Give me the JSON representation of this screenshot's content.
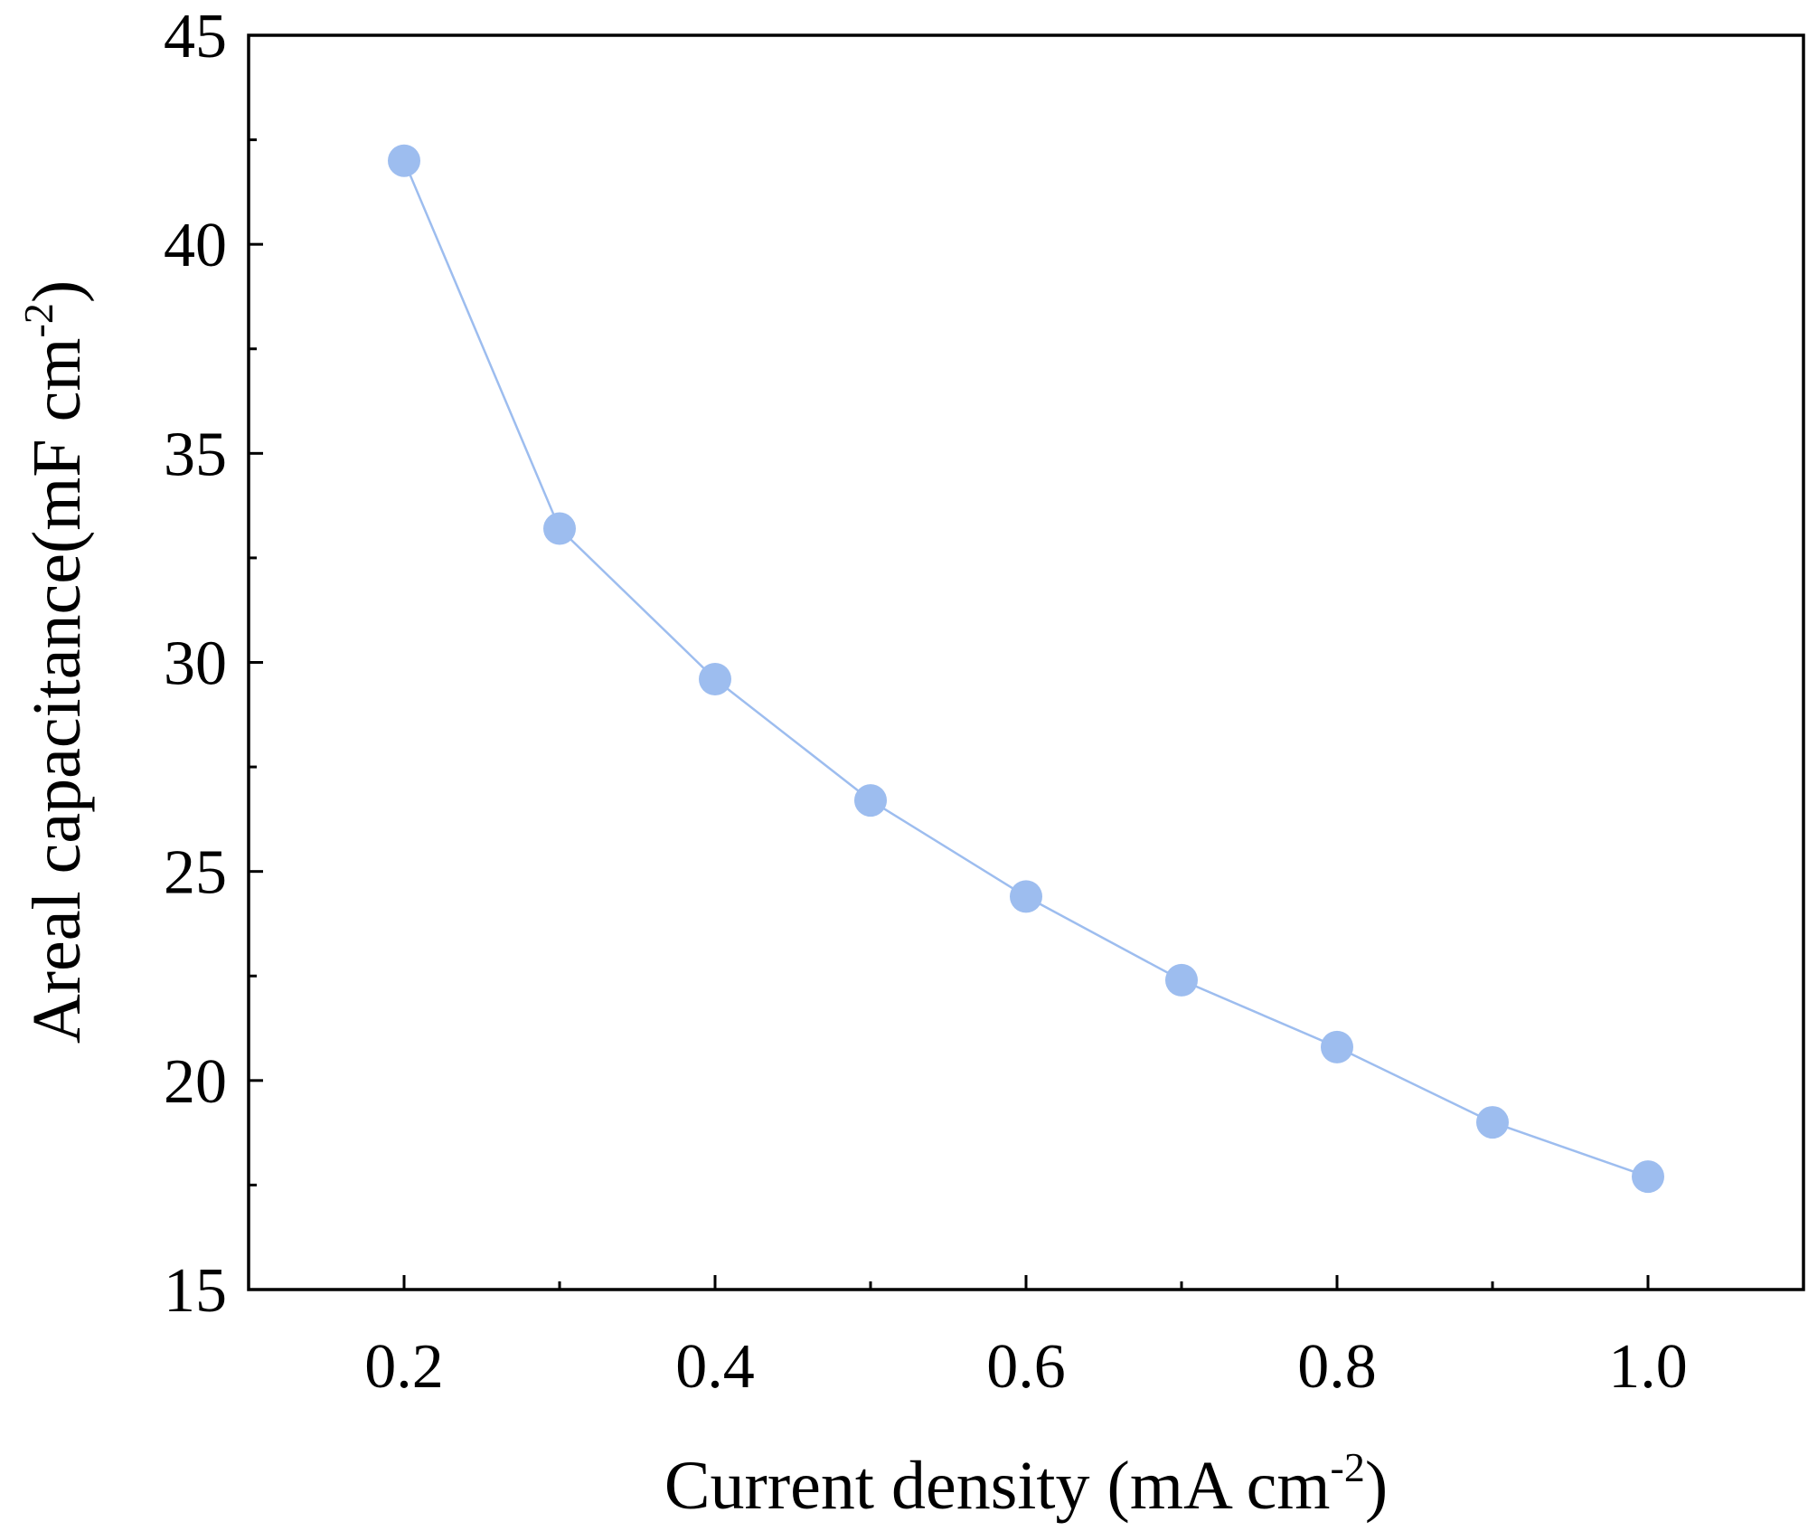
{
  "chart_data": {
    "type": "line",
    "title": "",
    "xlabel": {
      "text": "Current density (mA cm",
      "sup": "-2",
      "close": ")"
    },
    "ylabel": {
      "text": "Areal capacitance(mF cm",
      "sup": "-2",
      "close": ")"
    },
    "xlim": [
      0.1,
      1.1
    ],
    "ylim": [
      15,
      45
    ],
    "xticks": [
      0.2,
      0.4,
      0.6,
      0.8,
      1.0
    ],
    "xtick_labels": [
      "0.2",
      "0.4",
      "0.6",
      "0.8",
      "1.0"
    ],
    "xminor_ticks": [
      0.3,
      0.5,
      0.7,
      0.9
    ],
    "yticks": [
      15,
      20,
      25,
      30,
      35,
      40,
      45
    ],
    "ytick_labels": [
      "15",
      "20",
      "25",
      "30",
      "35",
      "40",
      "45"
    ],
    "yminor_ticks": [
      17.5,
      22.5,
      27.5,
      32.5,
      37.5,
      42.5
    ],
    "grid": false,
    "series": [
      {
        "color": "#9dbdef",
        "marker": "circle",
        "x": [
          0.2,
          0.3,
          0.4,
          0.5,
          0.6,
          0.7,
          0.8,
          0.9,
          1.0
        ],
        "y": [
          42.0,
          33.2,
          29.6,
          26.7,
          24.4,
          22.4,
          20.8,
          19.0,
          17.7
        ]
      }
    ]
  }
}
